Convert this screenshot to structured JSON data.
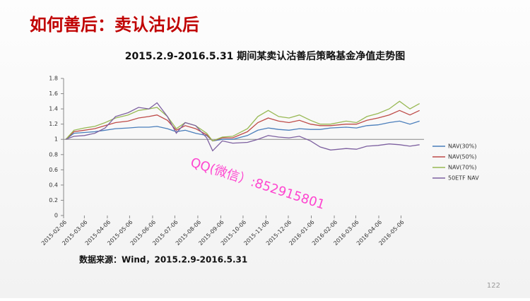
{
  "header": {
    "title": "如何善后：卖认沽以后"
  },
  "chart_data": {
    "type": "line",
    "title": "2015.2.9-2016.5.31  期间某卖认沽善后策略基金净值走势图",
    "x": [
      "2015-02-09",
      "2015-02-20",
      "2015-03-06",
      "2015-03-20",
      "2015-04-03",
      "2015-04-17",
      "2015-05-04",
      "2015-05-18",
      "2015-06-01",
      "2015-06-12",
      "2015-06-26",
      "2015-07-08",
      "2015-07-20",
      "2015-08-03",
      "2015-08-18",
      "2015-08-26",
      "2015-09-08",
      "2015-09-22",
      "2015-10-12",
      "2015-10-26",
      "2015-11-09",
      "2015-11-23",
      "2015-12-07",
      "2015-12-21",
      "2016-01-05",
      "2016-01-18",
      "2016-02-01",
      "2016-02-22",
      "2016-03-07",
      "2016-03-21",
      "2016-04-05",
      "2016-04-20",
      "2016-05-04",
      "2016-05-18",
      "2016-05-31"
    ],
    "series": [
      {
        "name": "NAV(30%)",
        "color": "#4a7ebb",
        "values": [
          1.0,
          1.08,
          1.09,
          1.1,
          1.12,
          1.14,
          1.15,
          1.16,
          1.16,
          1.17,
          1.14,
          1.1,
          1.12,
          1.08,
          1.05,
          0.98,
          1.0,
          1.0,
          1.05,
          1.12,
          1.15,
          1.13,
          1.12,
          1.14,
          1.13,
          1.13,
          1.15,
          1.16,
          1.15,
          1.18,
          1.19,
          1.22,
          1.24,
          1.2,
          1.24
        ]
      },
      {
        "name": "NAV(50%)",
        "color": "#be4b48",
        "values": [
          1.0,
          1.1,
          1.12,
          1.14,
          1.18,
          1.22,
          1.24,
          1.28,
          1.3,
          1.32,
          1.25,
          1.12,
          1.18,
          1.14,
          1.06,
          0.98,
          1.02,
          1.02,
          1.1,
          1.22,
          1.28,
          1.24,
          1.22,
          1.25,
          1.2,
          1.18,
          1.18,
          1.2,
          1.2,
          1.25,
          1.28,
          1.32,
          1.38,
          1.32,
          1.38
        ]
      },
      {
        "name": "NAV(70%)",
        "color": "#98b954",
        "values": [
          1.0,
          1.12,
          1.15,
          1.17,
          1.22,
          1.28,
          1.32,
          1.38,
          1.4,
          1.42,
          1.3,
          1.14,
          1.22,
          1.18,
          1.08,
          0.98,
          1.03,
          1.04,
          1.14,
          1.3,
          1.38,
          1.3,
          1.28,
          1.32,
          1.25,
          1.2,
          1.2,
          1.24,
          1.22,
          1.3,
          1.34,
          1.4,
          1.5,
          1.4,
          1.47
        ]
      },
      {
        "name": "50ETF NAV",
        "color": "#7d60a0",
        "values": [
          1.0,
          1.04,
          1.05,
          1.08,
          1.15,
          1.3,
          1.35,
          1.42,
          1.4,
          1.48,
          1.3,
          1.08,
          1.22,
          1.18,
          1.02,
          0.85,
          0.98,
          0.95,
          0.96,
          1.0,
          1.05,
          1.03,
          1.02,
          1.04,
          0.98,
          0.9,
          0.86,
          0.88,
          0.87,
          0.91,
          0.92,
          0.94,
          0.93,
          0.91,
          0.93
        ]
      }
    ],
    "xlim": [
      "2015-02-06",
      "2016-06-06"
    ],
    "xticks": [
      "2015-02-06",
      "2015-03-06",
      "2015-04-06",
      "2015-05-06",
      "2015-06-06",
      "2015-07-06",
      "2015-08-06",
      "2015-09-06",
      "2015-10-06",
      "2015-11-06",
      "2015-12-06",
      "2016-01-06",
      "2016-02-06",
      "2016-03-06",
      "2016-04-06",
      "2016-05-06"
    ],
    "ylim": [
      0,
      1.8
    ],
    "yticks": [
      0,
      0.2,
      0.4,
      0.6,
      0.8,
      1,
      1.2,
      1.4,
      1.6,
      1.8
    ],
    "legend": "right"
  },
  "source": "数据来源：Wind，2015.2.9-2016.5.31",
  "watermark": "QQ(微信）:852915801",
  "page_number": "122"
}
